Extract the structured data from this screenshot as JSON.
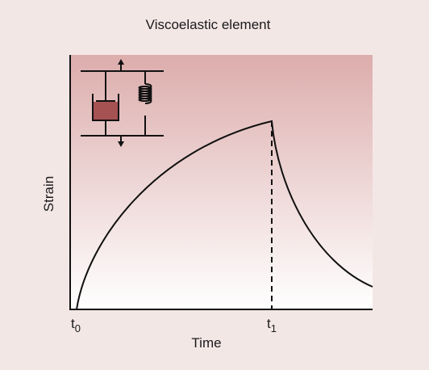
{
  "title": "Viscoelastic element",
  "y_label": "Strain",
  "x_label": "Time",
  "markers": [
    {
      "base": "t",
      "sub": "0"
    },
    {
      "base": "t",
      "sub": "1"
    }
  ]
}
